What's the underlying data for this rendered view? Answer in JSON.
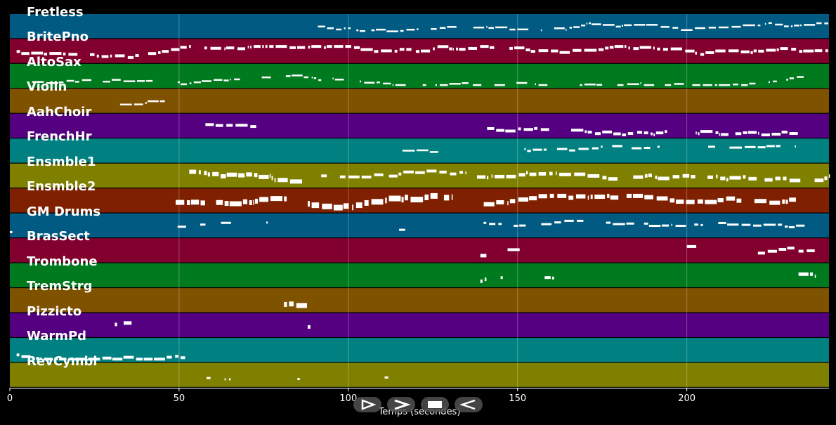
{
  "tracks": [
    {
      "name": "Fretless",
      "color": "#005a82"
    },
    {
      "name": "BritePno",
      "color": "#82002d"
    },
    {
      "name": "AltoSax",
      "color": "#007a1e"
    },
    {
      "name": "Violin",
      "color": "#7f5200"
    },
    {
      "name": "AahChoir",
      "color": "#540080"
    },
    {
      "name": "FrenchHr",
      "color": "#008080"
    },
    {
      "name": "Ensmble1",
      "color": "#808000"
    },
    {
      "name": "Ensmble2",
      "color": "#7f2000"
    },
    {
      "name": "GM Drums",
      "color": "#005a82"
    },
    {
      "name": "BrasSect",
      "color": "#82002d"
    },
    {
      "name": "Trombone",
      "color": "#007a1e"
    },
    {
      "name": "TremStrg",
      "color": "#7f5200"
    },
    {
      "name": "Pizzicto",
      "color": "#540080"
    },
    {
      "name": "WarmPd",
      "color": "#008080"
    },
    {
      "name": "RevCymbl",
      "color": "#808000"
    }
  ],
  "axis": {
    "title": "Temps (secondes)",
    "xlim": [
      0,
      242
    ],
    "ticks": [
      {
        "value": 0,
        "label": "0"
      },
      {
        "value": 50,
        "label": "50"
      },
      {
        "value": 100,
        "label": "100"
      },
      {
        "value": 150,
        "label": "150"
      },
      {
        "value": 200,
        "label": "200"
      }
    ]
  },
  "controls": [
    {
      "name": "play-button",
      "icon": "play-icon"
    },
    {
      "name": "forward-button",
      "icon": "forward-icon"
    },
    {
      "name": "stop-button",
      "icon": "stop-icon"
    },
    {
      "name": "rewind-button",
      "icon": "rewind-icon"
    }
  ]
}
